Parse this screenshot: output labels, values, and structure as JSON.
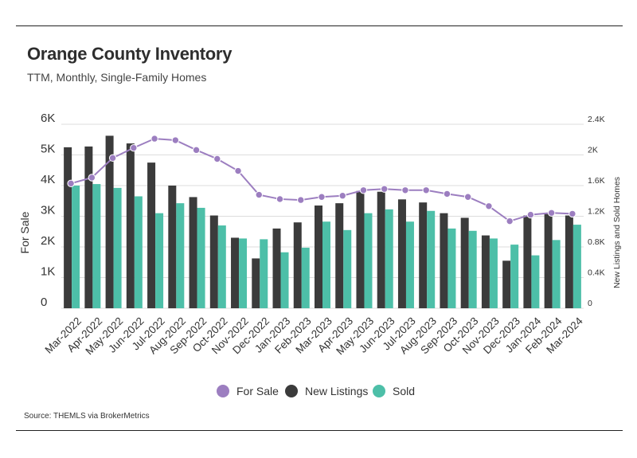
{
  "header": {
    "title": "Orange County Inventory",
    "subtitle": "TTM, Monthly, Single-Family Homes"
  },
  "footer": {
    "source": "Source:  THEMLS via BrokerMetrics"
  },
  "colors": {
    "for_sale": "#9c7ec0",
    "new_listings": "#3b3b3b",
    "sold": "#4dbfa8"
  },
  "chart_data": {
    "type": "bar",
    "categories": [
      "Mar-2022",
      "Apr-2022",
      "May-2022",
      "Jun-2022",
      "Jul-2022",
      "Aug-2022",
      "Sep-2022",
      "Oct-2022",
      "Nov-2022",
      "Dec-2022",
      "Jan-2023",
      "Feb-2023",
      "Mar-2023",
      "Apr-2023",
      "May-2023",
      "Jun-2023",
      "Jul-2023",
      "Aug-2023",
      "Sep-2023",
      "Oct-2023",
      "Nov-2023",
      "Dec-2023",
      "Jan-2024",
      "Feb-2024",
      "Mar-2024"
    ],
    "ylabel": "For Sale",
    "y2label": "New Listings and Sold Homes",
    "ylim": [
      0,
      6000
    ],
    "y2lim": [
      0,
      2400
    ],
    "yticks": [
      "0",
      "1K",
      "2K",
      "3K",
      "4K",
      "5K",
      "6K"
    ],
    "y2ticks": [
      "0",
      "0.4K",
      "0.8K",
      "1.2K",
      "1.6K",
      "2K",
      "2.4K"
    ],
    "grid": true,
    "legend_position": "bottom",
    "series": [
      {
        "name": "For Sale",
        "type": "line",
        "axis": "left",
        "values": [
          4070,
          4260,
          4900,
          5230,
          5530,
          5480,
          5160,
          4870,
          4480,
          3700,
          3560,
          3530,
          3630,
          3670,
          3850,
          3890,
          3850,
          3850,
          3730,
          3630,
          3330,
          2840,
          3050,
          3110,
          3080
        ]
      },
      {
        "name": "New Listings",
        "type": "bar",
        "axis": "right",
        "values": [
          2100,
          2110,
          2250,
          2150,
          1900,
          1600,
          1450,
          1210,
          920,
          650,
          1040,
          1120,
          1340,
          1370,
          1530,
          1520,
          1420,
          1380,
          1240,
          1180,
          950,
          620,
          1210,
          1230,
          1210
        ]
      },
      {
        "name": "Sold",
        "type": "bar",
        "axis": "right",
        "values": [
          1600,
          1620,
          1570,
          1460,
          1240,
          1370,
          1310,
          1080,
          910,
          900,
          730,
          790,
          1130,
          1020,
          1240,
          1290,
          1130,
          1270,
          1040,
          1010,
          910,
          830,
          690,
          890,
          1090
        ]
      }
    ]
  }
}
